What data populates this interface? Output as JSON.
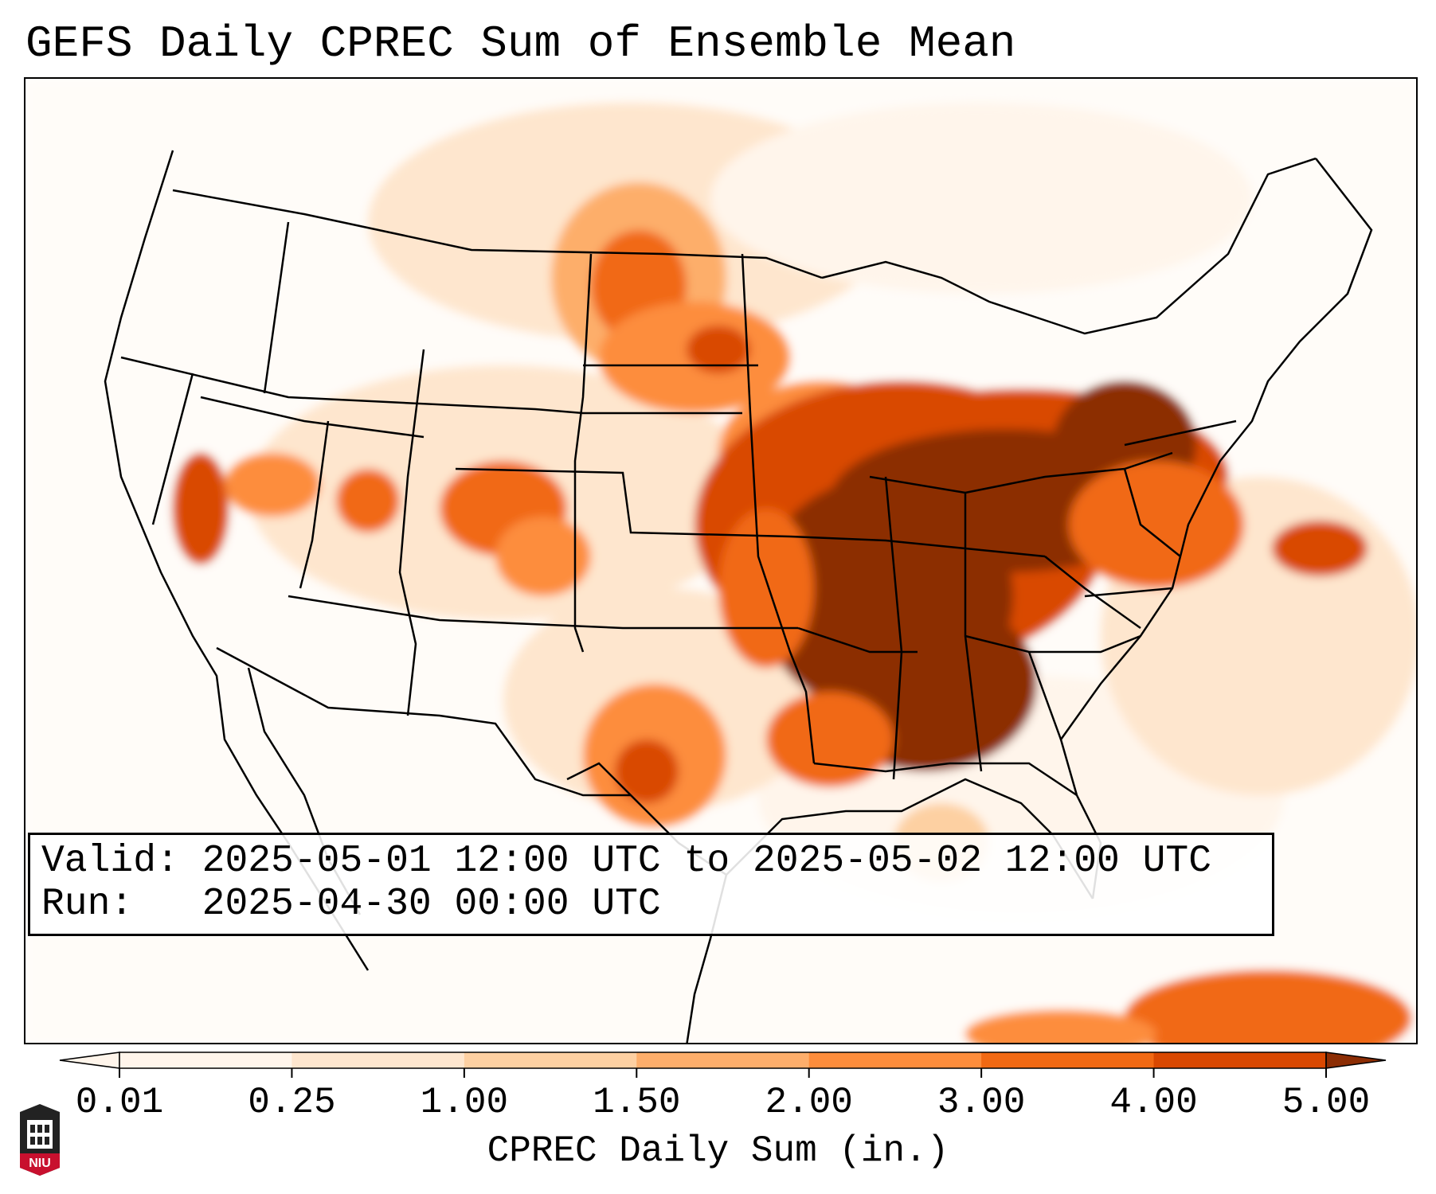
{
  "title": "GEFS Daily CPREC Sum of Ensemble Mean",
  "info": {
    "valid_line": "Valid: 2025-05-01 12:00 UTC to 2025-05-02 12:00 UTC",
    "run_line": "Run:   2025-04-30 00:00 UTC"
  },
  "colorbar": {
    "label": "CPREC Daily Sum (in.)",
    "ticks": [
      "0.01",
      "0.25",
      "1.00",
      "1.50",
      "2.00",
      "3.00",
      "4.00",
      "5.00"
    ],
    "colors": [
      "#fff5eb",
      "#fee6ce",
      "#fdd0a2",
      "#fdae6b",
      "#fd8d3c",
      "#f16913",
      "#d94801",
      "#8c2d04"
    ]
  },
  "logo": {
    "text": "NIU"
  },
  "map": {
    "region": "Contiguous United States",
    "colors": {
      "lightest": "#fff5eb",
      "light": "#fee6ce",
      "pale": "#fdd0a2",
      "mid": "#fdae6b",
      "orange": "#fd8d3c",
      "dark_orange": "#f16913",
      "burnt": "#d94801",
      "max": "#8c2d04"
    }
  }
}
